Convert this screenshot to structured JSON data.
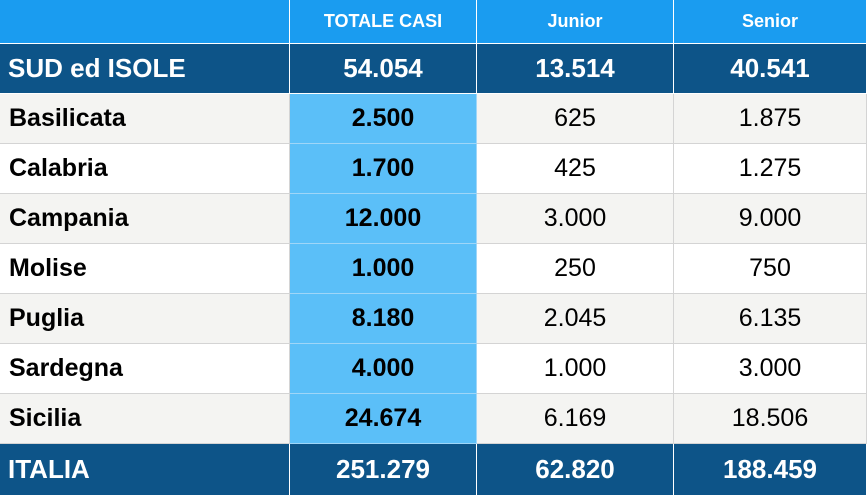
{
  "header": {
    "columns": [
      "",
      "TOTALE CASI",
      "Junior",
      "Senior"
    ]
  },
  "summary_top": {
    "label": "SUD ed ISOLE",
    "totale": "54.054",
    "junior": "13.514",
    "senior": "40.541"
  },
  "rows": [
    {
      "label": "Basilicata",
      "totale": "2.500",
      "junior": "625",
      "senior": "1.875"
    },
    {
      "label": "Calabria",
      "totale": "1.700",
      "junior": "425",
      "senior": "1.275"
    },
    {
      "label": "Campania",
      "totale": "12.000",
      "junior": "3.000",
      "senior": "9.000"
    },
    {
      "label": "Molise",
      "totale": "1.000",
      "junior": "250",
      "senior": "750"
    },
    {
      "label": "Puglia",
      "totale": "8.180",
      "junior": "2.045",
      "senior": "6.135"
    },
    {
      "label": "Sardegna",
      "totale": "4.000",
      "junior": "1.000",
      "senior": "3.000"
    },
    {
      "label": "Sicilia",
      "totale": "24.674",
      "junior": "6.169",
      "senior": "18.506"
    }
  ],
  "summary_bottom": {
    "label": "ITALIA",
    "totale": "251.279",
    "junior": "62.820",
    "senior": "188.459"
  },
  "colors": {
    "header_bg": "#1a9cf0",
    "summary_bg": "#0d5488",
    "total_column_bg": "#5bbff8",
    "shaded_row_bg": "#f4f4f2"
  }
}
